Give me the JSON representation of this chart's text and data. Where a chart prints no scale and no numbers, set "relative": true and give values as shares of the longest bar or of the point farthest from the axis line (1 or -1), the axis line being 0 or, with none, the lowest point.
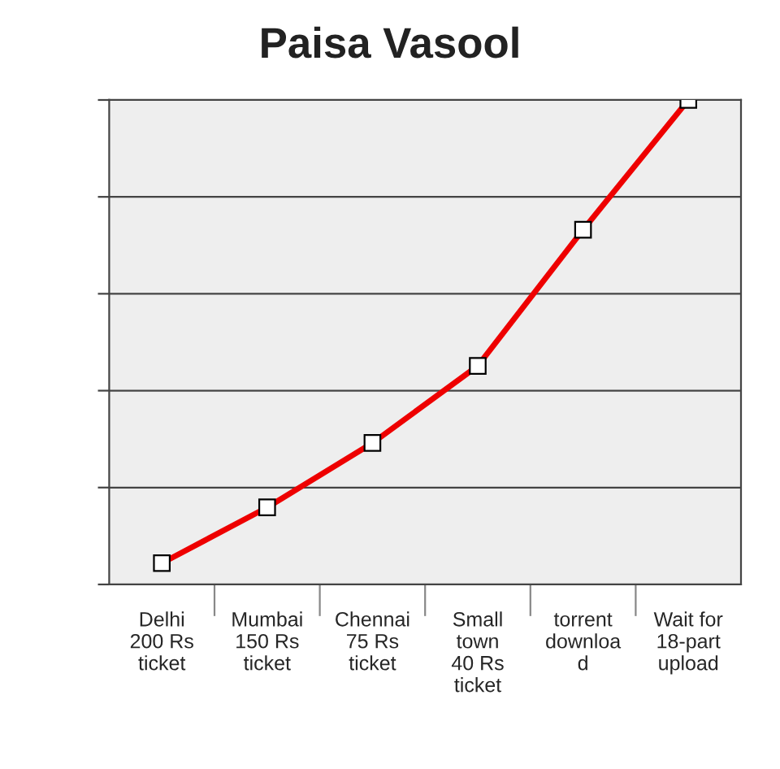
{
  "chart_data": {
    "type": "line",
    "title": "Paisa Vasool",
    "categories": [
      "Delhi\n200 Rs\nticket",
      "Mumbai\n150 Rs\nticket",
      "Chennai\n75 Rs\nticket",
      "Small\ntown\n40 Rs\nticket",
      "torrent\ndownloa\nd",
      "Wait for\n18-part\nupload"
    ],
    "series": [
      {
        "color": "#ee0000",
        "values": [
          0.044,
          0.159,
          0.292,
          0.451,
          0.732,
          1.0
        ]
      }
    ],
    "relative": true,
    "grid": "y",
    "marker": "square",
    "line_style": "solid",
    "legend": false
  }
}
